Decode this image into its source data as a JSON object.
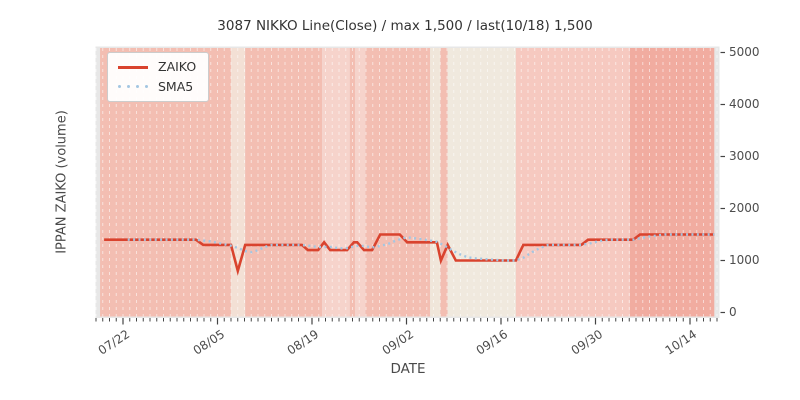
{
  "title": "3087 NIKKO Line(Close) / max 1,500 / last(10/18) 1,500",
  "y_axis": {
    "label": "IPPAN ZAIKO (volume)",
    "ticks": [
      "0",
      "1000",
      "2000",
      "3000",
      "4000",
      "5000"
    ],
    "tick_values": [
      0,
      1000,
      2000,
      3000,
      4000,
      5000
    ],
    "range": [
      0,
      5000
    ]
  },
  "x_axis": {
    "label": "DATE",
    "day_zero_date": "07/18",
    "major_ticks": [
      {
        "label": "07/22",
        "day": 4
      },
      {
        "label": "08/05",
        "day": 18
      },
      {
        "label": "08/19",
        "day": 32
      },
      {
        "label": "09/02",
        "day": 46
      },
      {
        "label": "09/16",
        "day": 60
      },
      {
        "label": "09/30",
        "day": 74
      },
      {
        "label": "10/14",
        "day": 88
      }
    ],
    "minor_ticks": {
      "from_day": 0,
      "to_day": 92,
      "step": 1
    }
  },
  "legend": {
    "items": [
      {
        "label": "ZAIKO",
        "color": "#d9432e",
        "style": "solid"
      },
      {
        "label": "SMA5",
        "color": "#a3c6e2",
        "style": "dotted"
      }
    ]
  },
  "colors": {
    "plot_bg": "#e7e7e7",
    "grid": "rgba(255,255,255,0.55)",
    "tick_mark": "#444444",
    "tick_text": "#4d4d4d",
    "title_text": "#333333"
  },
  "chart_data": {
    "type": "line",
    "title": "3087 NIKKO Line(Close) / max 1,500 / last(10/18) 1,500",
    "xlabel": "DATE",
    "ylabel": "IPPAN ZAIKO (volume)",
    "ylim": [
      0,
      5000
    ],
    "x_unit": "calendar days, day 0 = 07/18, axis major ticks every 14 days",
    "stats": {
      "max": "1,500",
      "last_date": "10/18",
      "last_value": "1,500"
    },
    "series": [
      {
        "name": "ZAIKO",
        "color": "#d9432e",
        "style": "solid",
        "points": [
          [
            1.2,
            1400
          ],
          [
            14.8,
            1400
          ],
          [
            15.9,
            1300
          ],
          [
            20.0,
            1300
          ],
          [
            21.0,
            800
          ],
          [
            22.1,
            1300
          ],
          [
            30.5,
            1300
          ],
          [
            31.4,
            1200
          ],
          [
            32.9,
            1200
          ],
          [
            33.8,
            1350
          ],
          [
            34.7,
            1200
          ],
          [
            37.2,
            1200
          ],
          [
            38.2,
            1350
          ],
          [
            38.7,
            1350
          ],
          [
            39.7,
            1200
          ],
          [
            40.9,
            1200
          ],
          [
            42.1,
            1500
          ],
          [
            45.0,
            1500
          ],
          [
            46.1,
            1350
          ],
          [
            50.5,
            1350
          ],
          [
            51.1,
            1000
          ],
          [
            52.1,
            1300
          ],
          [
            53.3,
            1000
          ],
          [
            62.2,
            1000
          ],
          [
            63.3,
            1300
          ],
          [
            71.9,
            1300
          ],
          [
            72.9,
            1400
          ],
          [
            79.6,
            1400
          ],
          [
            80.6,
            1500
          ],
          [
            91.6,
            1500
          ]
        ]
      },
      {
        "name": "SMA5",
        "color": "#a3c6e2",
        "style": "dotted",
        "points": [
          [
            4.7,
            1400
          ],
          [
            14.8,
            1400
          ],
          [
            16.9,
            1370
          ],
          [
            19.1,
            1310
          ],
          [
            20.1,
            1280
          ],
          [
            21.0,
            1240
          ],
          [
            22.1,
            1180
          ],
          [
            23.1,
            1160
          ],
          [
            24.0,
            1200
          ],
          [
            25.0,
            1260
          ],
          [
            26.1,
            1300
          ],
          [
            30.2,
            1300
          ],
          [
            31.7,
            1280
          ],
          [
            32.9,
            1260
          ],
          [
            35.0,
            1260
          ],
          [
            36.1,
            1230
          ],
          [
            37.3,
            1240
          ],
          [
            38.5,
            1280
          ],
          [
            39.7,
            1280
          ],
          [
            40.9,
            1250
          ],
          [
            42.1,
            1280
          ],
          [
            43.3,
            1320
          ],
          [
            44.4,
            1380
          ],
          [
            45.6,
            1430
          ],
          [
            46.5,
            1440
          ],
          [
            47.7,
            1420
          ],
          [
            49.2,
            1390
          ],
          [
            50.5,
            1360
          ],
          [
            51.7,
            1280
          ],
          [
            52.7,
            1200
          ],
          [
            53.9,
            1120
          ],
          [
            55.1,
            1060
          ],
          [
            56.3,
            1040
          ],
          [
            58.4,
            1020
          ],
          [
            60.6,
            1000
          ],
          [
            62.2,
            1000
          ],
          [
            63.4,
            1060
          ],
          [
            64.6,
            1160
          ],
          [
            65.8,
            1240
          ],
          [
            67.0,
            1300
          ],
          [
            71.7,
            1300
          ],
          [
            72.9,
            1320
          ],
          [
            74.1,
            1360
          ],
          [
            75.3,
            1390
          ],
          [
            76.4,
            1400
          ],
          [
            79.6,
            1400
          ],
          [
            80.7,
            1430
          ],
          [
            81.9,
            1460
          ],
          [
            83.1,
            1480
          ],
          [
            84.3,
            1500
          ],
          [
            91.6,
            1500
          ]
        ]
      }
    ],
    "background_bands": [
      {
        "from": 0.6,
        "to": 20.0,
        "color": "#f3beb2"
      },
      {
        "from": 20.0,
        "to": 22.1,
        "color": "#f3e0d5"
      },
      {
        "from": 22.1,
        "to": 33.5,
        "color": "#f3beb2"
      },
      {
        "from": 33.5,
        "to": 37.6,
        "color": "#f6d3cb"
      },
      {
        "from": 37.6,
        "to": 38.4,
        "color": "#f3beb2"
      },
      {
        "from": 38.4,
        "to": 39.9,
        "color": "#f6d3cb"
      },
      {
        "from": 39.9,
        "to": 49.5,
        "color": "#f3beb2"
      },
      {
        "from": 49.5,
        "to": 51.0,
        "color": "#f0e6da"
      },
      {
        "from": 51.0,
        "to": 52.1,
        "color": "#f3beb2"
      },
      {
        "from": 52.1,
        "to": 62.2,
        "color": "#f0e9de"
      },
      {
        "from": 62.2,
        "to": 79.1,
        "color": "#f6c9c0"
      },
      {
        "from": 79.1,
        "to": 91.6,
        "color": "#f1aca0"
      }
    ]
  }
}
